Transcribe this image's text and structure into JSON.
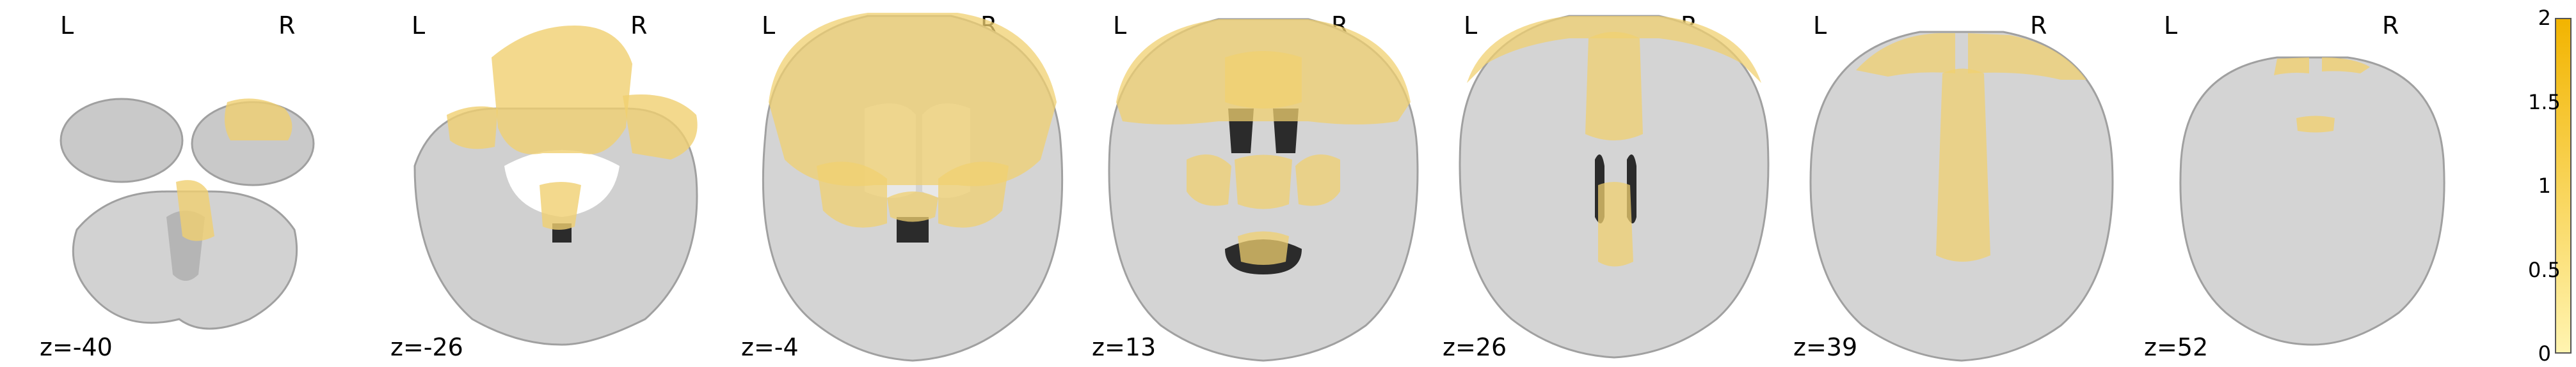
{
  "orientation": {
    "left": "L",
    "right": "R"
  },
  "slices": [
    {
      "z_label": "z=-40",
      "show_lr": false
    },
    {
      "z_label": "z=-26",
      "show_lr": true
    },
    {
      "z_label": "z=-4",
      "show_lr": true
    },
    {
      "z_label": "z=13",
      "show_lr": true
    },
    {
      "z_label": "z=26",
      "show_lr": true
    },
    {
      "z_label": "z=39",
      "show_lr": true
    },
    {
      "z_label": "z=52",
      "show_lr": true
    }
  ],
  "colorbar": {
    "ticks": [
      "2",
      "1.5",
      "1",
      "0.5",
      "0"
    ],
    "min": 0,
    "max": 2,
    "color_low": "#fff4b0",
    "color_high": "#f2b400"
  },
  "colors": {
    "overlay": "#f0d070",
    "brain_light": "#e8e8e8",
    "brain_mid": "#bdbdbd",
    "brain_dark": "#8a8a8a",
    "ventricle": "#2b2b2b"
  }
}
